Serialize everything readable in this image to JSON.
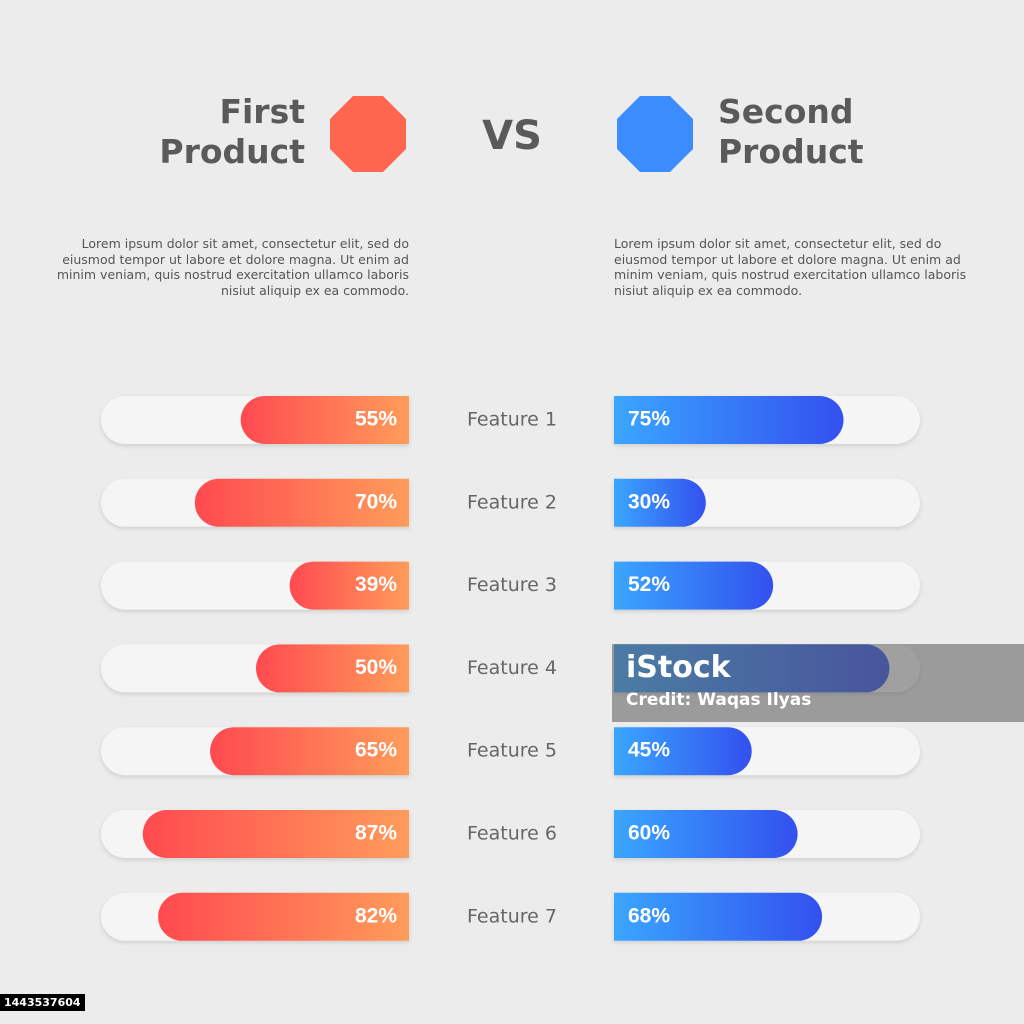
{
  "chart_data": {
    "type": "butterfly-bar",
    "vs": "VS",
    "categories": [
      "Feature 1",
      "Feature 2",
      "Feature 3",
      "Feature 4",
      "Feature 5",
      "Feature 6",
      "Feature 7"
    ],
    "xlim": [
      0,
      100
    ],
    "series": [
      {
        "name": "First Product",
        "colors": [
          "#ff4a50",
          "#ff9c5a"
        ],
        "description": "Lorem ipsum dolor sit amet, consectetur elit, sed do eiusmod tempor ut labore et dolore magna. Ut enim ad minim veniam, quis nostrud exercitation ullamco laboris nisiut aliquip ex ea commodo.",
        "values": [
          55,
          70,
          39,
          50,
          65,
          87,
          82
        ],
        "value_labels": [
          "55%",
          "70%",
          "39%",
          "50%",
          "65%",
          "87%",
          "82%"
        ]
      },
      {
        "name": "Second Product",
        "colors": [
          "#3aa6ff",
          "#3350ee"
        ],
        "description": "Lorem ipsum dolor sit amet, consectetur elit, sed do eiusmod tempor ut labore et dolore magna. Ut enim ad minim veniam, quis nostrud exercitation ullamco laboris nisiut aliquip ex ea commodo.",
        "values": [
          75,
          30,
          52,
          90,
          45,
          60,
          68
        ],
        "value_labels": [
          "75%",
          "30%",
          "52%",
          null,
          "45%",
          "60%",
          "68%"
        ]
      }
    ]
  },
  "watermark": {
    "brand": "iStock",
    "credit": "Credit: Waqas Ilyas",
    "image_id": "1443537604"
  }
}
